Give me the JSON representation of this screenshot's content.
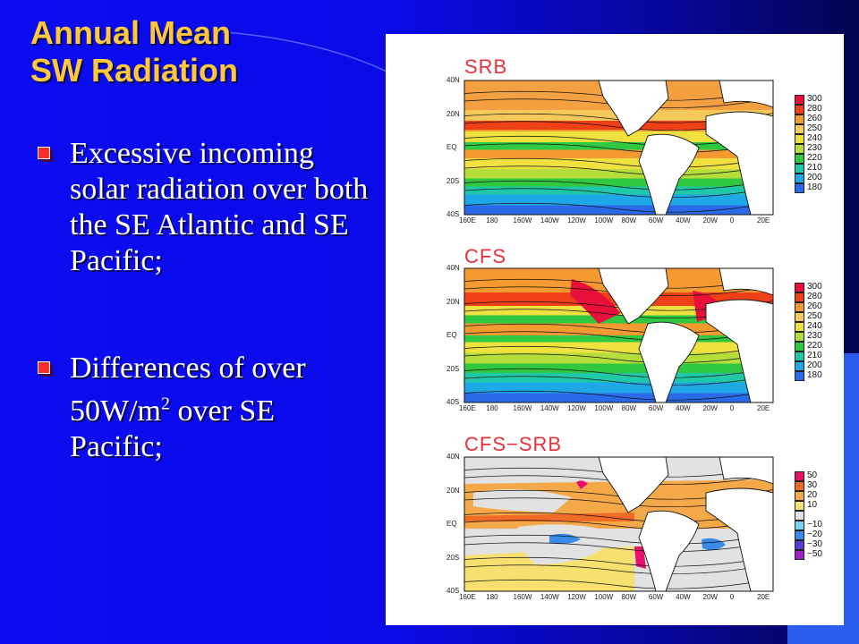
{
  "slide": {
    "title_line1": "Annual Mean",
    "title_line2": "SW Radiation",
    "bullets": [
      {
        "text": "Excessive incoming solar radiation over both the SE Atlantic and SE Pacific;"
      },
      {
        "text_before_sup": "Differences of over 50W/m",
        "sup": "2",
        "text_after_sup": " over SE Pacific;"
      }
    ]
  },
  "figure": {
    "lat_labels": [
      "40N",
      "20N",
      "EQ",
      "20S",
      "40S"
    ],
    "lon_labels": [
      "160E",
      "180",
      "160W",
      "140W",
      "120W",
      "100W",
      "80W",
      "60W",
      "40W",
      "20W",
      "0",
      "20E"
    ],
    "panels": [
      {
        "title": "SRB",
        "legend": [
          {
            "label": "300",
            "color": "#e8103a"
          },
          {
            "label": "280",
            "color": "#f04018"
          },
          {
            "label": "260",
            "color": "#f59a30"
          },
          {
            "label": "250",
            "color": "#f7c85a"
          },
          {
            "label": "240",
            "color": "#f0e040"
          },
          {
            "label": "230",
            "color": "#b5de3a"
          },
          {
            "label": "220",
            "color": "#30c840"
          },
          {
            "label": "210",
            "color": "#1ec8a8"
          },
          {
            "label": "200",
            "color": "#1ea8e8"
          },
          {
            "label": "180",
            "color": "#2a6ae8"
          }
        ]
      },
      {
        "title": "CFS",
        "legend": [
          {
            "label": "300",
            "color": "#e8103a"
          },
          {
            "label": "280",
            "color": "#f04018"
          },
          {
            "label": "260",
            "color": "#f59a30"
          },
          {
            "label": "250",
            "color": "#f7c85a"
          },
          {
            "label": "240",
            "color": "#f0e040"
          },
          {
            "label": "230",
            "color": "#b5de3a"
          },
          {
            "label": "220",
            "color": "#30c840"
          },
          {
            "label": "210",
            "color": "#1ec8a8"
          },
          {
            "label": "200",
            "color": "#1ea8e8"
          },
          {
            "label": "180",
            "color": "#2a6ae8"
          }
        ]
      },
      {
        "title": "CFS−SRB",
        "legend": [
          {
            "label": "50",
            "color": "#e8106a"
          },
          {
            "label": "30",
            "color": "#f06a28"
          },
          {
            "label": "20",
            "color": "#f5a848"
          },
          {
            "label": "10",
            "color": "#f7e070"
          },
          {
            "label": "",
            "color": "#e0e0e0"
          },
          {
            "label": "−10",
            "color": "#7ad0f0"
          },
          {
            "label": "−20",
            "color": "#3a8ae8"
          },
          {
            "label": "−30",
            "color": "#5a3ad8"
          },
          {
            "label": "−50",
            "color": "#a020c0"
          }
        ]
      }
    ]
  }
}
